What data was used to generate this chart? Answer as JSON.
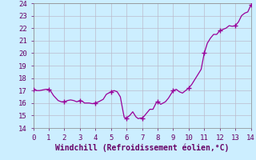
{
  "title": "",
  "xlabel": "Windchill (Refroidissement éolien,°C)",
  "xlim": [
    0,
    14
  ],
  "ylim": [
    14,
    24
  ],
  "yticks": [
    14,
    15,
    16,
    17,
    18,
    19,
    20,
    21,
    22,
    23,
    24
  ],
  "xticks": [
    0,
    1,
    2,
    3,
    4,
    5,
    6,
    7,
    8,
    9,
    10,
    11,
    12,
    13,
    14
  ],
  "line_color": "#990099",
  "marker_color": "#990099",
  "bg_color": "#cceeff",
  "grid_color": "#bbbbcc",
  "x": [
    0.0,
    0.1,
    0.2,
    0.4,
    0.6,
    0.8,
    1.0,
    1.15,
    1.3,
    1.6,
    1.8,
    2.0,
    2.2,
    2.4,
    2.6,
    2.8,
    3.0,
    3.15,
    3.3,
    3.6,
    3.8,
    4.0,
    4.2,
    4.5,
    4.7,
    5.0,
    5.2,
    5.4,
    5.6,
    5.75,
    5.85,
    6.0,
    6.2,
    6.4,
    6.6,
    6.75,
    6.9,
    7.0,
    7.1,
    7.3,
    7.5,
    7.7,
    7.9,
    8.0,
    8.2,
    8.5,
    8.7,
    9.0,
    9.2,
    9.4,
    9.6,
    9.8,
    10.0,
    10.2,
    10.4,
    10.6,
    10.8,
    11.0,
    11.2,
    11.4,
    11.6,
    11.8,
    12.0,
    12.2,
    12.4,
    12.6,
    12.8,
    13.0,
    13.2,
    13.4,
    13.6,
    13.8,
    14.0,
    14.15,
    14.3
  ],
  "y": [
    17.1,
    17.1,
    17.0,
    17.0,
    17.05,
    17.1,
    17.1,
    16.9,
    16.6,
    16.2,
    16.1,
    16.1,
    16.2,
    16.25,
    16.2,
    16.1,
    16.2,
    16.15,
    16.0,
    16.0,
    15.95,
    16.0,
    16.1,
    16.3,
    16.7,
    16.9,
    17.0,
    16.9,
    16.5,
    15.5,
    14.85,
    14.8,
    15.0,
    15.3,
    14.9,
    14.75,
    14.8,
    14.8,
    14.9,
    15.2,
    15.5,
    15.5,
    16.0,
    16.1,
    15.9,
    16.1,
    16.4,
    17.0,
    17.1,
    16.9,
    16.8,
    17.0,
    17.2,
    17.5,
    17.9,
    18.3,
    18.7,
    20.0,
    20.8,
    21.2,
    21.5,
    21.5,
    21.8,
    21.9,
    22.0,
    22.2,
    22.15,
    22.2,
    22.5,
    23.0,
    23.2,
    23.3,
    23.85,
    23.4,
    23.3
  ],
  "marker_x": [
    0.0,
    1.0,
    2.0,
    3.0,
    4.0,
    5.0,
    6.0,
    7.0,
    8.0,
    9.0,
    10.0,
    11.0,
    12.0,
    13.0,
    14.0
  ],
  "marker_y": [
    17.1,
    17.1,
    16.1,
    16.2,
    16.0,
    16.9,
    14.8,
    14.8,
    16.1,
    17.0,
    17.2,
    20.0,
    21.8,
    22.2,
    23.85
  ]
}
